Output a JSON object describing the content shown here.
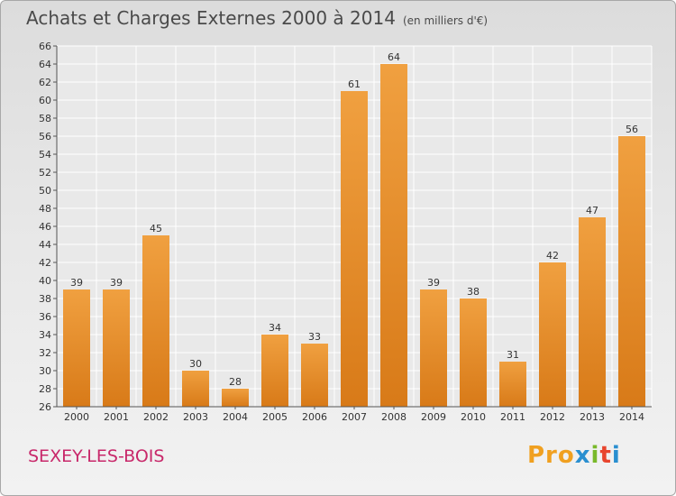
{
  "header": {
    "title": "Achats et Charges Externes 2000 à 2014",
    "subtitle": "(en milliers d'€)"
  },
  "footer": {
    "commune": "SEXEY-LES-BOIS",
    "brand_parts": [
      {
        "text": "Pro",
        "color": "#f0a020"
      },
      {
        "text": "x",
        "color": "#2a8fd0"
      },
      {
        "text": "i",
        "color": "#79b92a"
      },
      {
        "text": "t",
        "color": "#e8452e"
      },
      {
        "text": "i",
        "color": "#2a8fd0"
      }
    ]
  },
  "chart_data": {
    "type": "bar",
    "categories": [
      "2000",
      "2001",
      "2002",
      "2003",
      "2004",
      "2005",
      "2006",
      "2007",
      "2008",
      "2009",
      "2010",
      "2011",
      "2012",
      "2013",
      "2014"
    ],
    "values": [
      39,
      39,
      45,
      30,
      28,
      34,
      33,
      61,
      64,
      39,
      38,
      31,
      42,
      47,
      56
    ],
    "title": "Achats et Charges Externes 2000 à 2014",
    "xlabel": "",
    "ylabel": "",
    "ylim": [
      26,
      66
    ],
    "ytick_step": 2,
    "grid": true,
    "data_labels": true,
    "bar_color": "#f0a040",
    "bar_color_dark": "#d87a18"
  }
}
